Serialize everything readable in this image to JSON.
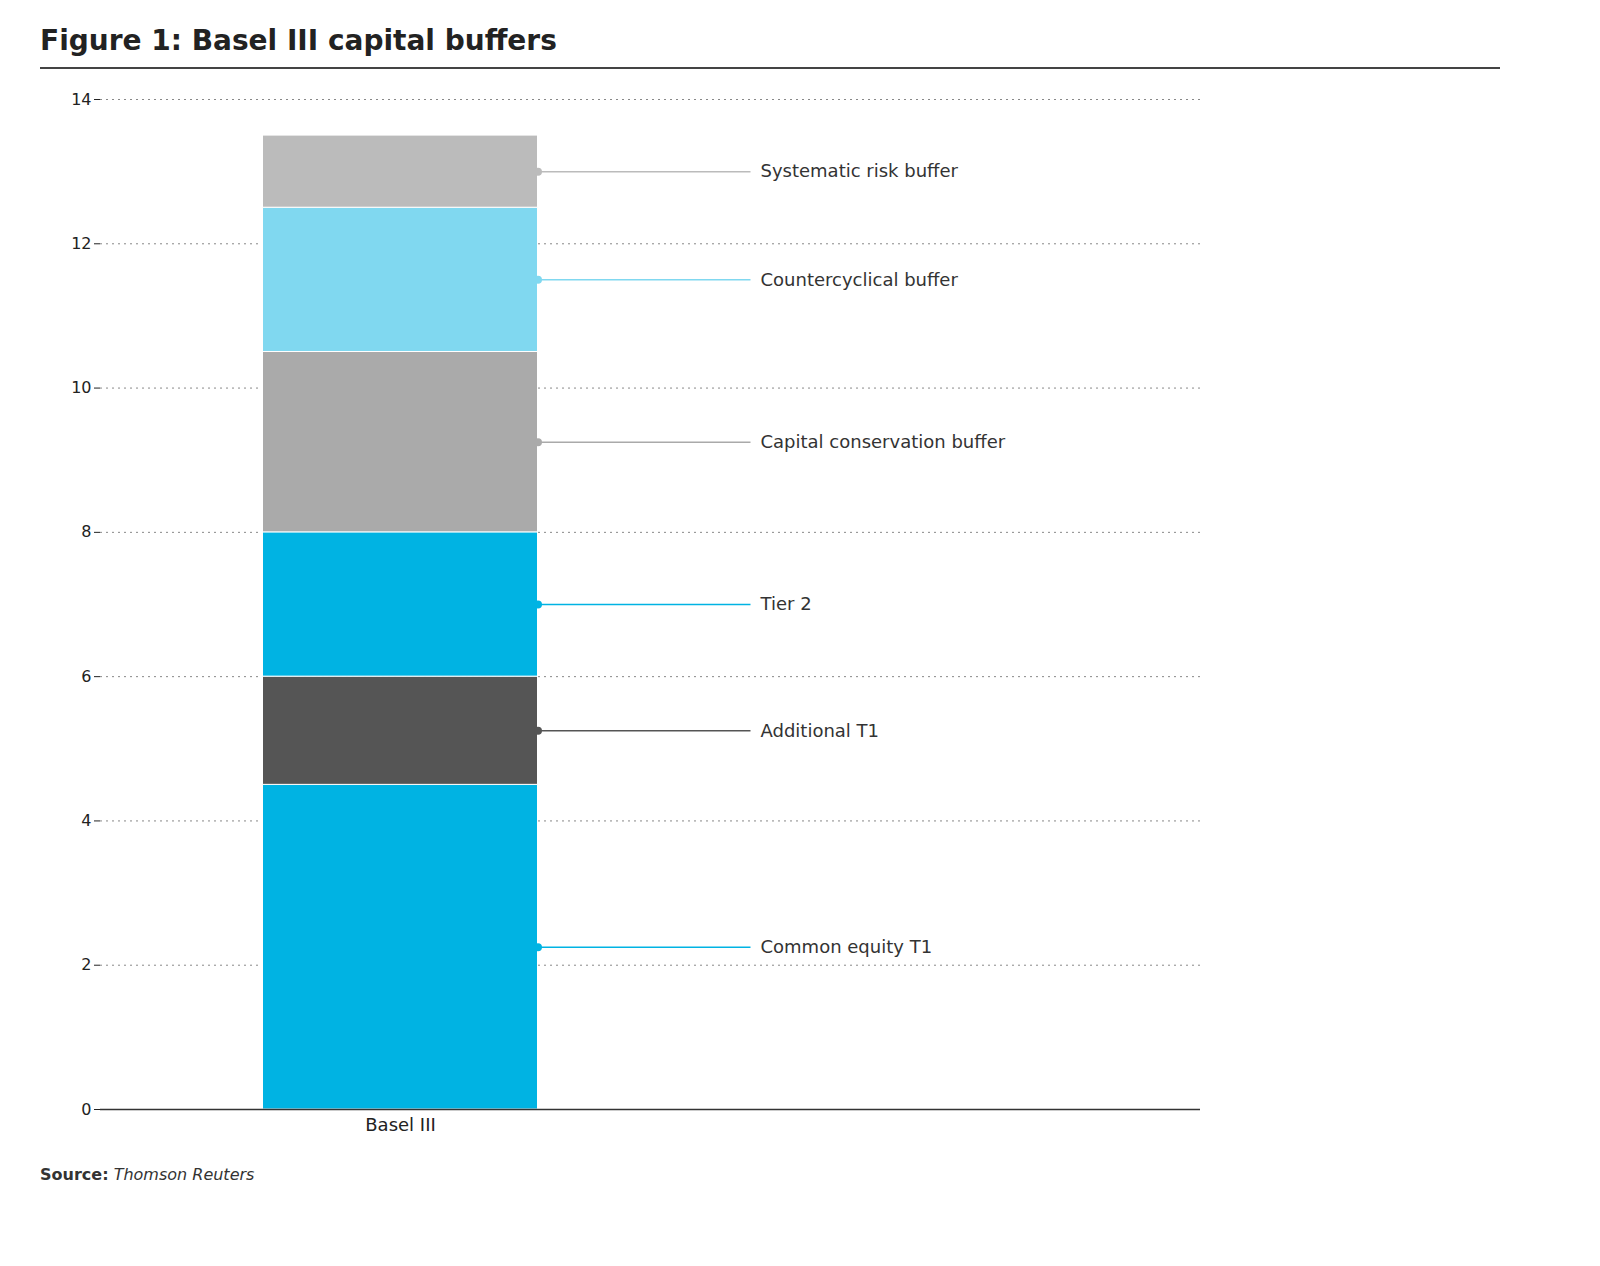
{
  "chart_data": {
    "type": "bar",
    "stacked": true,
    "title": "Figure 1: Basel III capital buffers",
    "annotations": [
      "Source:",
      "Thomson Reuters"
    ],
    "categories": [
      "Basel III"
    ],
    "series": [
      {
        "name": "Common equity T1",
        "color": "#00b3e3",
        "values": [
          4.5
        ]
      },
      {
        "name": "Additional T1",
        "color": "#555555",
        "values": [
          1.5
        ]
      },
      {
        "name": "Tier 2",
        "color": "#00b3e3",
        "values": [
          2.0
        ]
      },
      {
        "name": "Capital conservation buffer",
        "color": "#aaaaaa",
        "values": [
          2.5
        ]
      },
      {
        "name": "Countercyclical buffer",
        "color": "#80d8f0",
        "values": [
          2.0
        ]
      },
      {
        "name": "Systematic risk buffer",
        "color": "#bbbbbb",
        "values": [
          1.0
        ]
      }
    ],
    "ylim": [
      0,
      14
    ],
    "yticks": [
      0,
      2,
      4,
      6,
      8,
      10,
      12,
      14
    ],
    "grid": true
  }
}
